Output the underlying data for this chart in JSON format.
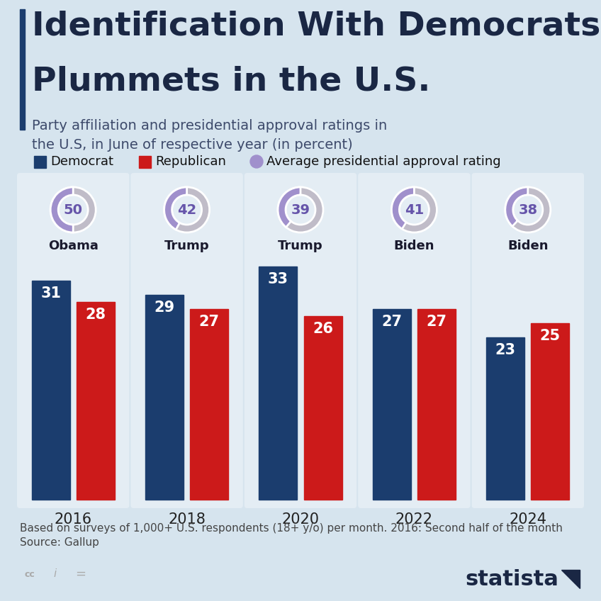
{
  "title_line1": "Identification With Democrats",
  "title_line2": "Plummets in the U.S.",
  "subtitle": "Party affiliation and presidential approval ratings in\nthe U.S, in June of respective year (in percent)",
  "background_color": "#d6e4ee",
  "panel_color": "#e4edf4",
  "years": [
    "2016",
    "2018",
    "2020",
    "2022",
    "2024"
  ],
  "presidents": [
    "Obama",
    "Trump",
    "Trump",
    "Biden",
    "Biden"
  ],
  "democrat_values": [
    31,
    29,
    33,
    27,
    23
  ],
  "republican_values": [
    28,
    27,
    26,
    27,
    25
  ],
  "approval_ratings": [
    50,
    42,
    39,
    41,
    38
  ],
  "democrat_color": "#1b3d6e",
  "republican_color": "#cc1a1a",
  "approval_fill_color": "#a090cc",
  "approval_bg_color": "#c0bcc8",
  "approval_text_color": "#6655aa",
  "title_color": "#1a2744",
  "subtitle_color": "#3d4a6b",
  "accent_bar_color": "#1b3d6e",
  "footer_text_line1": "Based on surveys of 1,000+ U.S. respondents (18+ y/o) per month. 2016: Second half of the month",
  "footer_text_line2": "Source: Gallup",
  "legend_items": [
    "Democrat",
    "Republican",
    "Average presidential approval rating"
  ],
  "legend_colors": [
    "#1b3d6e",
    "#cc1a1a",
    "#a090cc"
  ],
  "statista_color": "#1a2744"
}
